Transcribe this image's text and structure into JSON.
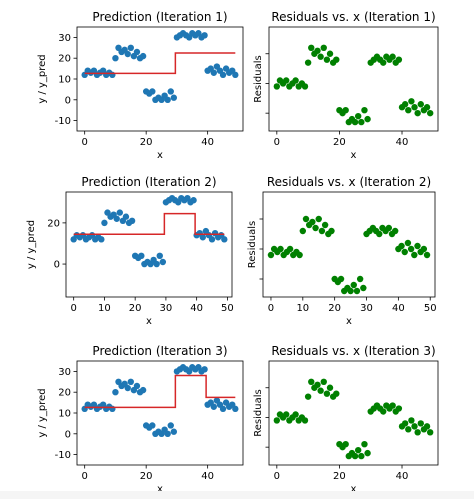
{
  "chart_data": [
    {
      "type": "scatter",
      "title": "Prediction (Iteration 1)",
      "xlabel": "x",
      "ylabel": "y / y_pred",
      "xlim": [
        -2.5,
        51.5
      ],
      "ylim": [
        -15,
        35
      ],
      "xticks": [
        0,
        20,
        40
      ],
      "yticks": [
        -10,
        0,
        10,
        20,
        30
      ],
      "series": [
        {
          "role": "y",
          "color": "#1f77b4",
          "x": [
            0,
            1,
            2,
            3,
            4,
            5,
            6,
            7,
            8,
            9,
            10,
            11,
            12,
            13,
            14,
            15,
            16,
            17,
            18,
            19,
            20,
            21,
            22,
            23,
            24,
            25,
            26,
            27,
            28,
            29,
            30,
            31,
            32,
            33,
            34,
            35,
            36,
            37,
            38,
            39,
            40,
            41,
            42,
            43,
            44,
            45,
            46,
            47,
            48,
            49
          ],
          "y": [
            12,
            14,
            13,
            14,
            12,
            13,
            14,
            12,
            13,
            12,
            20,
            25,
            23,
            24,
            22,
            25,
            21,
            23,
            20,
            21,
            4,
            3,
            4,
            0,
            1,
            0,
            2,
            0,
            4,
            1,
            30,
            31,
            32,
            31,
            30,
            32,
            31,
            32,
            30,
            31,
            14,
            15,
            13,
            16,
            14,
            12,
            15,
            13,
            14,
            12
          ]
        },
        {
          "role": "y_pred",
          "color": "#d62728",
          "x": [
            0,
            29.5,
            29.5,
            49
          ],
          "y": [
            12.7,
            12.7,
            22.5,
            22.5
          ]
        }
      ]
    },
    {
      "type": "scatter",
      "title": "Residuals vs. x (Iteration 1)",
      "xlabel": "x",
      "ylabel": "Residuals",
      "xlim": [
        -2.5,
        51.5
      ],
      "ylim": [
        -16,
        19
      ],
      "xticks": [
        0,
        20,
        40
      ],
      "series": [
        {
          "role": "residuals",
          "color": "#008000",
          "x": [
            0,
            1,
            2,
            3,
            4,
            5,
            6,
            7,
            8,
            9,
            10,
            11,
            12,
            13,
            14,
            15,
            16,
            17,
            18,
            19,
            20,
            21,
            22,
            23,
            24,
            25,
            26,
            27,
            28,
            29,
            30,
            31,
            32,
            33,
            34,
            35,
            36,
            37,
            38,
            39,
            40,
            41,
            42,
            43,
            44,
            45,
            46,
            47,
            48,
            49
          ],
          "y": [
            -1,
            1,
            0,
            1,
            -1,
            0,
            1,
            -1,
            0,
            -1,
            7,
            12,
            10,
            11,
            9,
            12,
            8,
            10,
            7,
            8,
            -9,
            -10,
            -9,
            -13,
            -12,
            -13,
            -11,
            -13,
            -9,
            -12,
            7,
            8,
            9,
            8,
            7,
            9,
            8,
            9,
            7,
            8,
            -8,
            -7,
            -9,
            -6,
            -8,
            -10,
            -7,
            -9,
            -8,
            -10
          ]
        }
      ]
    },
    {
      "type": "scatter",
      "title": "Prediction (Iteration 2)",
      "xlabel": "x",
      "ylabel": "y / y_pred",
      "xlim": [
        -2.5,
        51.5
      ],
      "ylim": [
        -16,
        35
      ],
      "xticks": [
        0,
        10,
        20,
        30,
        40,
        50
      ],
      "yticks": [
        0,
        20
      ],
      "series": [
        {
          "role": "y",
          "color": "#1f77b4",
          "x": [
            0,
            1,
            2,
            3,
            4,
            5,
            6,
            7,
            8,
            9,
            10,
            11,
            12,
            13,
            14,
            15,
            16,
            17,
            18,
            19,
            20,
            21,
            22,
            23,
            24,
            25,
            26,
            27,
            28,
            29,
            30,
            31,
            32,
            33,
            34,
            35,
            36,
            37,
            38,
            39,
            40,
            41,
            42,
            43,
            44,
            45,
            46,
            47,
            48,
            49
          ],
          "y": [
            12,
            14,
            13,
            14,
            12,
            13,
            14,
            12,
            13,
            12,
            20,
            25,
            23,
            24,
            22,
            25,
            21,
            23,
            20,
            21,
            4,
            3,
            4,
            0,
            1,
            0,
            2,
            0,
            4,
            1,
            30,
            31,
            32,
            31,
            30,
            32,
            31,
            32,
            30,
            31,
            14,
            15,
            13,
            16,
            14,
            12,
            15,
            13,
            14,
            12
          ]
        },
        {
          "role": "y_pred",
          "color": "#d62728",
          "x": [
            0,
            29.5,
            29.5,
            39.5,
            39.5,
            49
          ],
          "y": [
            14.5,
            14.5,
            24.5,
            24.5,
            14.5,
            14.5
          ]
        }
      ]
    },
    {
      "type": "scatter",
      "title": "Residuals vs. x (Iteration 2)",
      "xlabel": "x",
      "ylabel": "Residuals",
      "xlim": [
        -2.5,
        51.5
      ],
      "ylim": [
        -16,
        19
      ],
      "xticks": [
        0,
        10,
        20,
        30,
        40,
        50
      ],
      "series": [
        {
          "role": "residuals",
          "color": "#008000",
          "x": [
            0,
            1,
            2,
            3,
            4,
            5,
            6,
            7,
            8,
            9,
            10,
            11,
            12,
            13,
            14,
            15,
            16,
            17,
            18,
            19,
            20,
            21,
            22,
            23,
            24,
            25,
            26,
            27,
            28,
            29,
            30,
            31,
            32,
            33,
            34,
            35,
            36,
            37,
            38,
            39,
            40,
            41,
            42,
            43,
            44,
            45,
            46,
            47,
            48,
            49
          ],
          "y": [
            -2,
            0,
            -1,
            0,
            -2,
            -1,
            0,
            -2,
            -1,
            -2,
            6,
            10,
            8,
            9,
            7,
            10,
            6,
            8,
            5,
            6,
            -10,
            -11,
            -10,
            -14,
            -13,
            -14,
            -12,
            -14,
            -10,
            -13,
            5,
            6,
            7,
            6,
            5,
            7,
            6,
            7,
            5,
            6,
            0,
            1,
            -1,
            2,
            0,
            -2,
            1,
            -1,
            0,
            -2
          ]
        }
      ]
    },
    {
      "type": "scatter",
      "title": "Prediction (Iteration 3)",
      "xlabel": "x",
      "ylabel": "y / y_pred",
      "xlim": [
        -2.5,
        51.5
      ],
      "ylim": [
        -15,
        35
      ],
      "xticks": [
        0,
        20,
        40
      ],
      "yticks": [
        -10,
        0,
        10,
        20,
        30
      ],
      "series": [
        {
          "role": "y",
          "color": "#1f77b4",
          "x": [
            0,
            1,
            2,
            3,
            4,
            5,
            6,
            7,
            8,
            9,
            10,
            11,
            12,
            13,
            14,
            15,
            16,
            17,
            18,
            19,
            20,
            21,
            22,
            23,
            24,
            25,
            26,
            27,
            28,
            29,
            30,
            31,
            32,
            33,
            34,
            35,
            36,
            37,
            38,
            39,
            40,
            41,
            42,
            43,
            44,
            45,
            46,
            47,
            48,
            49
          ],
          "y": [
            12,
            14,
            13,
            14,
            12,
            13,
            14,
            12,
            13,
            12,
            20,
            25,
            23,
            24,
            22,
            25,
            21,
            23,
            20,
            21,
            4,
            3,
            4,
            0,
            1,
            0,
            2,
            0,
            4,
            1,
            30,
            31,
            32,
            31,
            30,
            32,
            31,
            32,
            30,
            31,
            14,
            15,
            13,
            16,
            14,
            12,
            15,
            13,
            14,
            12
          ]
        },
        {
          "role": "y_pred",
          "color": "#d62728",
          "x": [
            0,
            29.5,
            29.5,
            39.5,
            39.5,
            49
          ],
          "y": [
            12.7,
            12.7,
            28,
            28,
            17.5,
            17.5
          ]
        }
      ]
    },
    {
      "type": "scatter",
      "title": "Residuals vs. x (Iteration 3)",
      "xlabel": "x",
      "ylabel": "Residuals",
      "xlim": [
        -2.5,
        51.5
      ],
      "ylim": [
        -16,
        19
      ],
      "xticks": [
        0,
        20,
        40
      ],
      "series": [
        {
          "role": "residuals",
          "color": "#008000",
          "x": [
            0,
            1,
            2,
            3,
            4,
            5,
            6,
            7,
            8,
            9,
            10,
            11,
            12,
            13,
            14,
            15,
            16,
            17,
            18,
            19,
            20,
            21,
            22,
            23,
            24,
            25,
            26,
            27,
            28,
            29,
            30,
            31,
            32,
            33,
            34,
            35,
            36,
            37,
            38,
            39,
            40,
            41,
            42,
            43,
            44,
            45,
            46,
            47,
            48,
            49
          ],
          "y": [
            -1,
            1,
            0,
            1,
            -1,
            0,
            1,
            -1,
            0,
            -1,
            7,
            12,
            10,
            11,
            9,
            12,
            8,
            10,
            7,
            8,
            -9,
            -10,
            -9,
            -13,
            -12,
            -13,
            -11,
            -13,
            -9,
            -12,
            2,
            3,
            4,
            3,
            2,
            4,
            3,
            4,
            2,
            3,
            -3,
            -2,
            -4,
            -1,
            -3,
            -5,
            -2,
            -4,
            -3,
            -5
          ]
        }
      ]
    }
  ]
}
